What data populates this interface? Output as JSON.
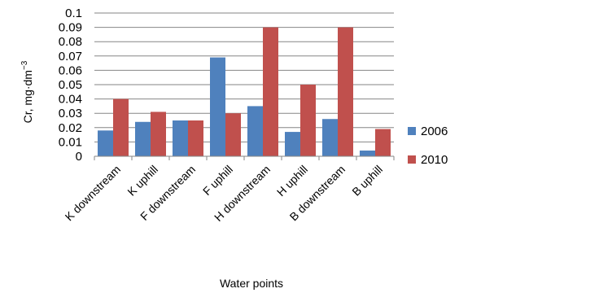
{
  "chart_data": {
    "type": "bar",
    "xlabel": "Water points",
    "ylabel": "Cr, mg·dm",
    "ylabel_sup": "−3",
    "ylim": [
      0,
      0.1
    ],
    "yticks": [
      "0",
      "0.01",
      "0.02",
      "0.03",
      "0.04",
      "0.05",
      "0.06",
      "0.07",
      "0.08",
      "0.09",
      "0.1"
    ],
    "categories": [
      "K downstream",
      "K uphill",
      "F downstream",
      "F uphill",
      "H downstream",
      "H uphill",
      "B downstream",
      "B uphill"
    ],
    "series": [
      {
        "name": "2006",
        "color": "#4f81bd",
        "values": [
          0.018,
          0.024,
          0.025,
          0.069,
          0.035,
          0.017,
          0.026,
          0.004
        ]
      },
      {
        "name": "2010",
        "color": "#c0504d",
        "values": [
          0.04,
          0.031,
          0.025,
          0.03,
          0.09,
          0.05,
          0.09,
          0.019
        ]
      }
    ],
    "grid": true,
    "legend_position": "right"
  }
}
